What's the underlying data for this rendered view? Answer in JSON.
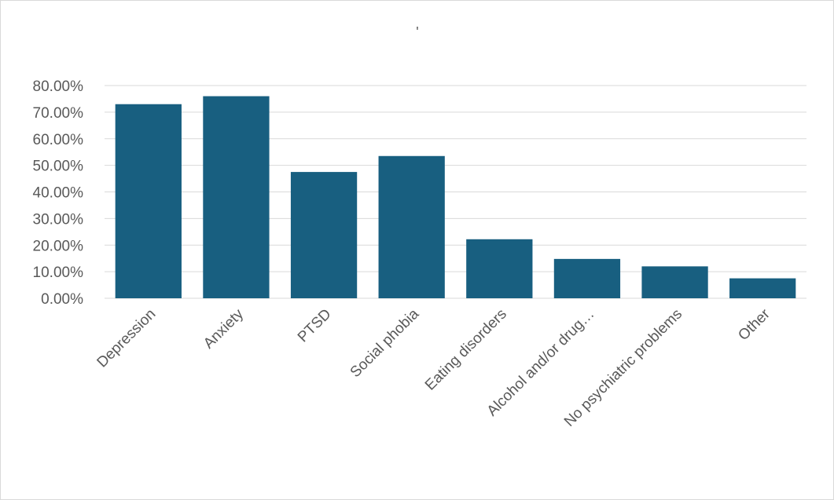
{
  "chart_data": {
    "type": "bar",
    "title": "'",
    "categories": [
      "Depression",
      "Anxiety",
      "PTSD",
      "Social phobia",
      "Eating disorders",
      "Alcohol and/or drug…",
      "No psychiatric problems",
      "Other"
    ],
    "values": [
      0.73,
      0.76,
      0.475,
      0.535,
      0.222,
      0.148,
      0.12,
      0.075
    ],
    "ylim": [
      0,
      0.8
    ],
    "yticks": [
      0,
      0.1,
      0.2,
      0.3,
      0.4,
      0.5,
      0.6,
      0.7,
      0.8
    ],
    "ytick_labels": [
      "0.00%",
      "10.00%",
      "20.00%",
      "30.00%",
      "40.00%",
      "50.00%",
      "60.00%",
      "70.00%",
      "80.00%"
    ],
    "grid": true,
    "bar_color": "#185f80",
    "grid_color": "#d9d9d9",
    "text_color": "#595959"
  }
}
